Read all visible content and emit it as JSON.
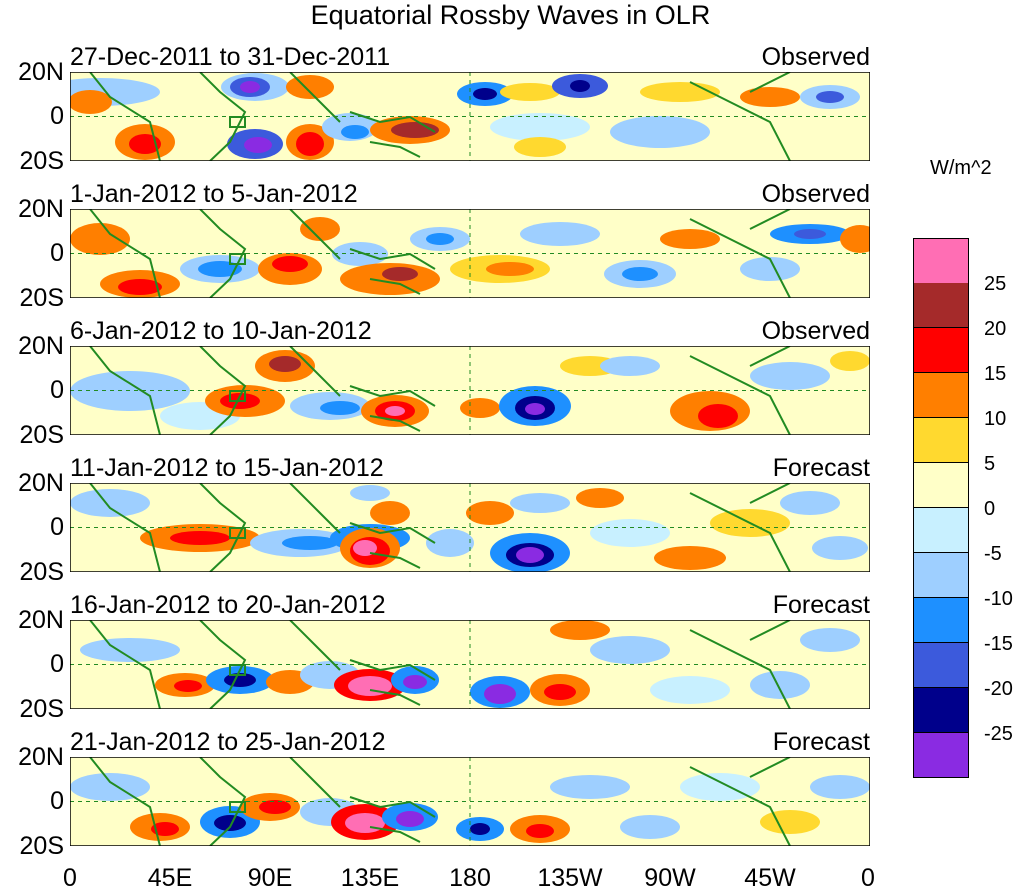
{
  "title": "Equatorial Rossby Waves in OLR",
  "units": "W/m^2",
  "y_tick_labels": [
    "20N",
    "0",
    "20S"
  ],
  "x_tick_labels": [
    "0",
    "45E",
    "90E",
    "135E",
    "180",
    "135W",
    "90W",
    "45W",
    "0"
  ],
  "panels": [
    {
      "period": "27-Dec-2011 to 31-Dec-2011",
      "status": "Observed"
    },
    {
      "period": "1-Jan-2012 to 5-Jan-2012",
      "status": "Observed"
    },
    {
      "period": "6-Jan-2012 to 10-Jan-2012",
      "status": "Observed"
    },
    {
      "period": "11-Jan-2012 to 15-Jan-2012",
      "status": "Forecast"
    },
    {
      "period": "16-Jan-2012 to 20-Jan-2012",
      "status": "Forecast"
    },
    {
      "period": "21-Jan-2012 to 25-Jan-2012",
      "status": "Forecast"
    }
  ],
  "colorbar": {
    "labels": [
      "25",
      "20",
      "15",
      "10",
      "5",
      "0",
      "-5",
      "-10",
      "-15",
      "-20",
      "-25"
    ],
    "colors": [
      "#ff6eb4",
      "#a52a2a",
      "#ff0000",
      "#ff7f00",
      "#ffd92f",
      "#ffffc8",
      "#c8f0ff",
      "#9ecfff",
      "#1e90ff",
      "#3c5adc",
      "#00008b",
      "#8a2be2"
    ]
  }
}
